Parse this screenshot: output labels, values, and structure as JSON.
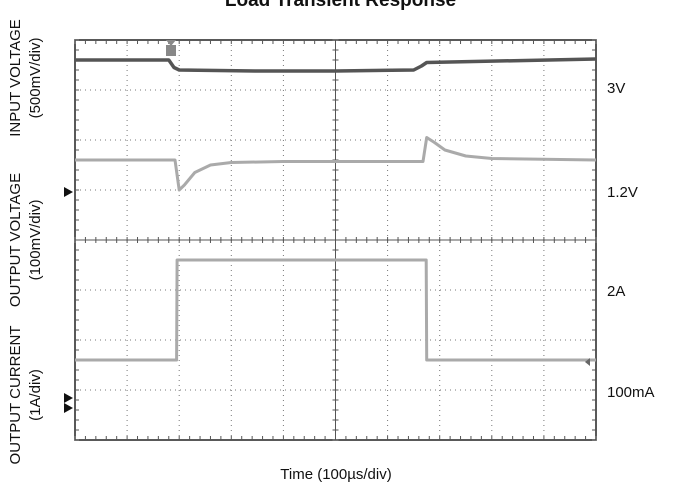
{
  "chart_data": {
    "type": "line",
    "title": "Load Transient Response",
    "xlabel": "Time (100µs/div)",
    "x_divisions": 10,
    "y_divisions": 8,
    "grid": true,
    "channels": [
      {
        "ylabel_line1": "INPUT VOLTAGE",
        "ylabel_line2": "(500mV/div)",
        "level_label": "3V",
        "color": "#555555",
        "points": [
          [
            0,
            0.4
          ],
          [
            1.8,
            0.4
          ],
          [
            1.9,
            0.55
          ],
          [
            2.0,
            0.6
          ],
          [
            3.5,
            0.62
          ],
          [
            5.0,
            0.62
          ],
          [
            6.5,
            0.6
          ],
          [
            6.65,
            0.52
          ],
          [
            6.75,
            0.45
          ],
          [
            10,
            0.38
          ]
        ]
      },
      {
        "ylabel_line1": "OUTPUT VOLTAGE",
        "ylabel_line2": "(100mV/div)",
        "level_label": "1.2V",
        "color": "#aaaaaa",
        "points": [
          [
            0,
            2.4
          ],
          [
            1.92,
            2.4
          ],
          [
            2.0,
            3.0
          ],
          [
            2.1,
            2.9
          ],
          [
            2.3,
            2.65
          ],
          [
            2.6,
            2.5
          ],
          [
            3.0,
            2.45
          ],
          [
            4.0,
            2.43
          ],
          [
            6.68,
            2.43
          ],
          [
            6.75,
            1.95
          ],
          [
            6.9,
            2.05
          ],
          [
            7.1,
            2.2
          ],
          [
            7.5,
            2.32
          ],
          [
            8.0,
            2.37
          ],
          [
            10,
            2.4
          ]
        ]
      },
      {
        "ylabel_line1": "OUTPUT CURRENT",
        "ylabel_line2": "(1A/div)",
        "level_label_high": "2A",
        "level_label_low": "100mA",
        "color": "#aaaaaa",
        "points": [
          [
            0,
            6.4
          ],
          [
            1.95,
            6.4
          ],
          [
            1.96,
            4.4
          ],
          [
            6.74,
            4.4
          ],
          [
            6.75,
            6.4
          ],
          [
            10,
            6.4
          ]
        ]
      }
    ]
  }
}
